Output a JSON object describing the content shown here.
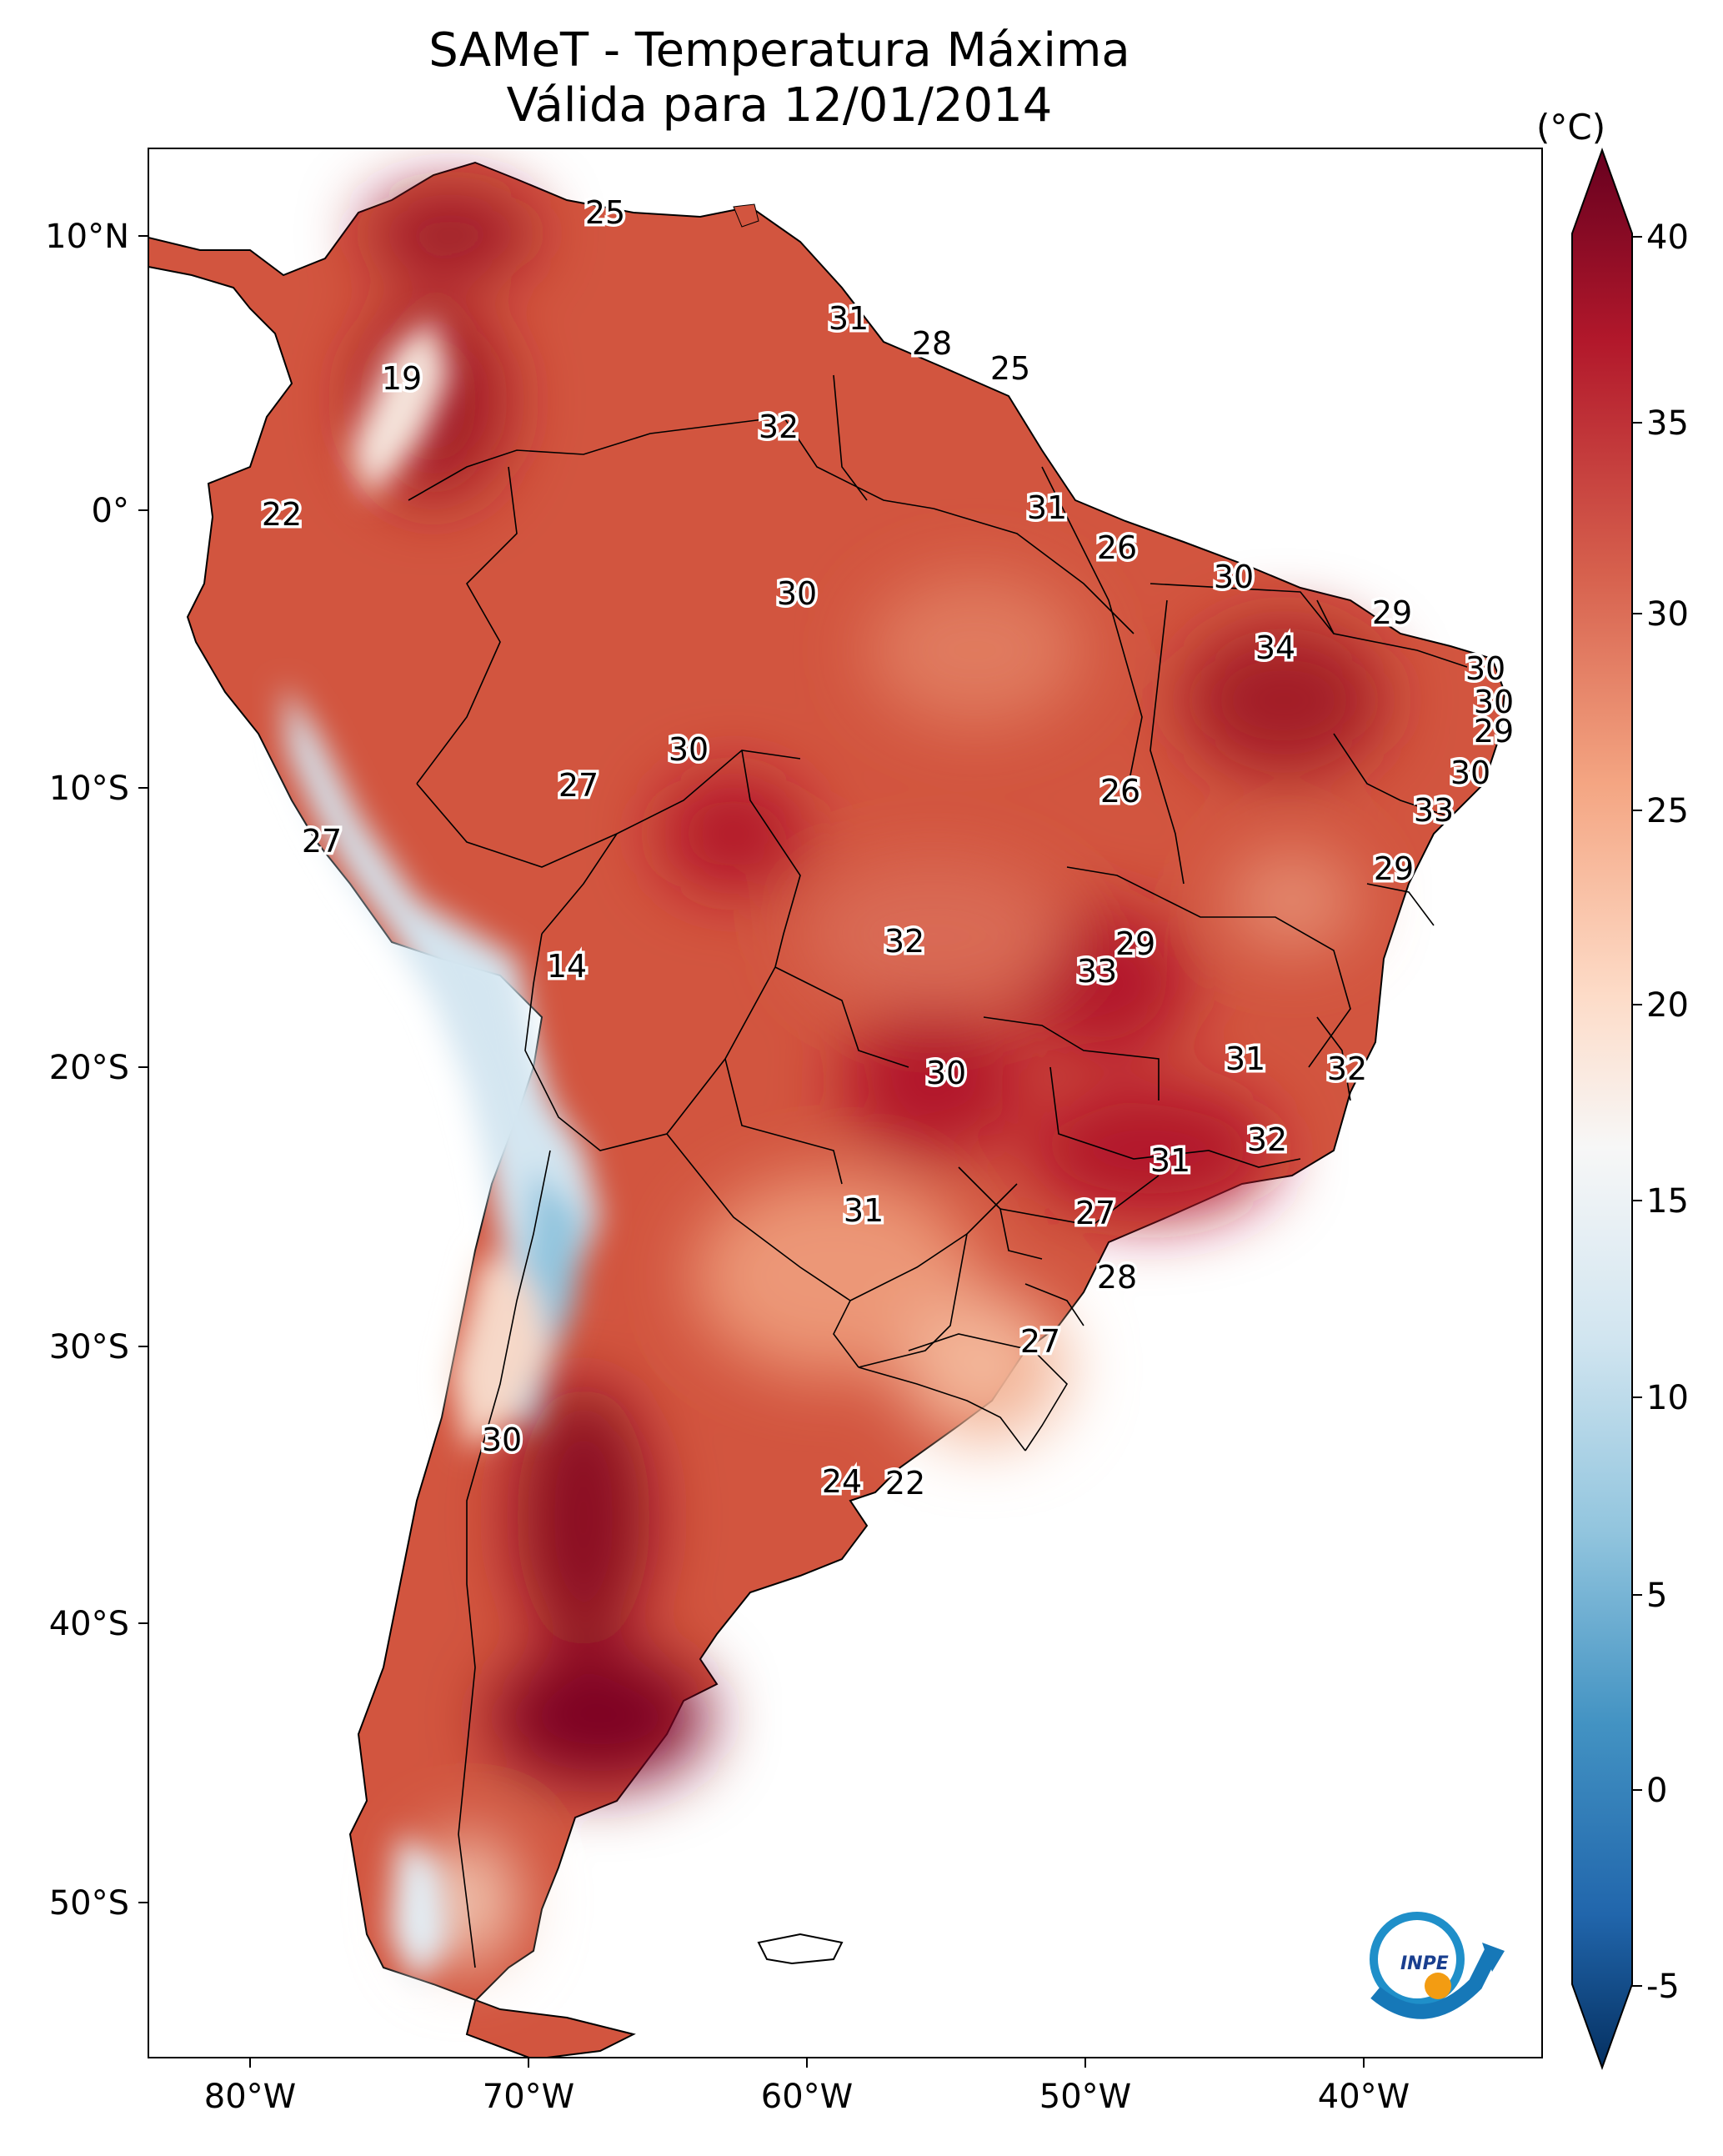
{
  "title": {
    "line1": "SAMeT - Temperatura Máxima",
    "line2": "Válida para 12/01/2014"
  },
  "colorbar": {
    "unit": "(°C)",
    "ticks": [
      "40",
      "35",
      "30",
      "25",
      "20",
      "15",
      "10",
      "5",
      "0",
      "-5"
    ],
    "colors": [
      "#67001f",
      "#b2182b",
      "#d6604d",
      "#f4a582",
      "#fddbc7",
      "#f7f7f7",
      "#d1e5f0",
      "#92c5de",
      "#4393c3",
      "#2166ac",
      "#053061"
    ]
  },
  "axes": {
    "lat_labels": [
      "10°N",
      "0°",
      "10°S",
      "20°S",
      "30°S",
      "40°S",
      "50°S"
    ],
    "lon_labels": [
      "80°W",
      "70°W",
      "60°W",
      "50°W",
      "40°W"
    ]
  },
  "contour_labels": [
    "25",
    "31",
    "28",
    "25",
    "19",
    "32",
    "22",
    "31",
    "26",
    "30",
    "30",
    "29",
    "34",
    "30",
    "30",
    "29",
    "30",
    "27",
    "30",
    "26",
    "33",
    "27",
    "29",
    "32",
    "29",
    "33",
    "14",
    "31",
    "32",
    "30",
    "32",
    "31",
    "31",
    "27",
    "28",
    "27",
    "30",
    "24",
    "22"
  ],
  "logo": {
    "text": "INPE"
  },
  "colors": {
    "land_base": "#d2553f",
    "ocean": "#ffffff"
  }
}
